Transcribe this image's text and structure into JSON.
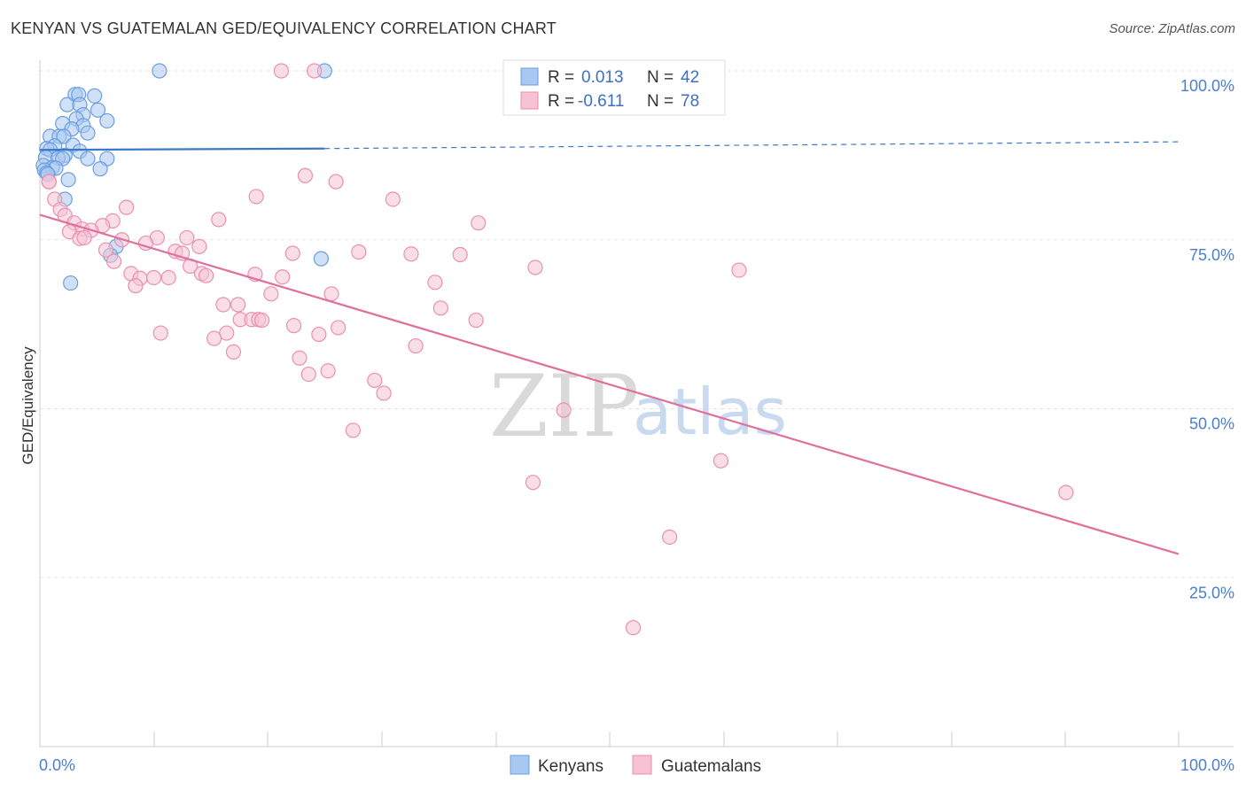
{
  "title": "KENYAN VS GUATEMALAN GED/EQUIVALENCY CORRELATION CHART",
  "source": "Source: ZipAtlas.com",
  "watermark": {
    "zip": "ZIP",
    "atlas": "atlas"
  },
  "colors": {
    "kenyan_fill": "#a9c8f0",
    "kenyan_stroke": "#6a9ee0",
    "kenyan_line": "#3a78c8",
    "guatemalan_fill": "#f6c3d4",
    "guatemalan_stroke": "#ea8fb0",
    "guatemalan_line": "#e06f99",
    "grid": "#e3e3e3",
    "tick_label": "#4a7fcf"
  },
  "legend": {
    "rows": [
      {
        "r_label": "R =",
        "r_value": "0.013",
        "n_label": "N =",
        "n_value": "42"
      },
      {
        "r_label": "R =",
        "r_value": "-0.611",
        "n_label": "N =",
        "n_value": "78"
      }
    ]
  },
  "bottom_legend": [
    "Kenyans",
    "Guatemalans"
  ],
  "chart_data": {
    "type": "scatter",
    "title": "KENYAN VS GUATEMALAN GED/EQUIVALENCY CORRELATION CHART",
    "xlabel": "",
    "ylabel": "GED/Equivalency",
    "xlim": [
      0,
      100
    ],
    "ylim": [
      0,
      100
    ],
    "x_tick_labels": [
      "0.0%",
      "100.0%"
    ],
    "y_ticks": [
      25,
      50,
      75,
      100
    ],
    "y_tick_labels": [
      "25.0%",
      "50.0%",
      "75.0%",
      "100.0%"
    ],
    "grid": true,
    "series": [
      {
        "name": "Kenyans",
        "trend": {
          "x": [
            0,
            25,
            100
          ],
          "y": [
            88.3,
            88.5,
            89.5
          ],
          "solid_until": 25
        },
        "points": [
          {
            "x": 10.5,
            "y": 100
          },
          {
            "x": 25,
            "y": 100
          },
          {
            "x": 3.1,
            "y": 96.5
          },
          {
            "x": 3.4,
            "y": 96.5
          },
          {
            "x": 4.8,
            "y": 96.3
          },
          {
            "x": 2.4,
            "y": 95
          },
          {
            "x": 3.5,
            "y": 95
          },
          {
            "x": 5.1,
            "y": 94.2
          },
          {
            "x": 3.8,
            "y": 93.5
          },
          {
            "x": 3.2,
            "y": 92.9
          },
          {
            "x": 5.9,
            "y": 92.6
          },
          {
            "x": 2,
            "y": 92.2
          },
          {
            "x": 3.8,
            "y": 91.9
          },
          {
            "x": 2.8,
            "y": 91.4
          },
          {
            "x": 4.2,
            "y": 90.8
          },
          {
            "x": 0.9,
            "y": 90.3
          },
          {
            "x": 1.7,
            "y": 90.3
          },
          {
            "x": 2.1,
            "y": 90.3
          },
          {
            "x": 2.9,
            "y": 89
          },
          {
            "x": 1.3,
            "y": 88.9
          },
          {
            "x": 0.6,
            "y": 88.5
          },
          {
            "x": 0.9,
            "y": 88.3
          },
          {
            "x": 3.5,
            "y": 88.1
          },
          {
            "x": 2.2,
            "y": 87.5
          },
          {
            "x": 0.5,
            "y": 87.2
          },
          {
            "x": 1.6,
            "y": 87.1
          },
          {
            "x": 2,
            "y": 87
          },
          {
            "x": 4.2,
            "y": 87
          },
          {
            "x": 5.9,
            "y": 87
          },
          {
            "x": 0.3,
            "y": 86
          },
          {
            "x": 1.1,
            "y": 85.7
          },
          {
            "x": 1.4,
            "y": 85.6
          },
          {
            "x": 5.3,
            "y": 85.5
          },
          {
            "x": 0.4,
            "y": 85.3
          },
          {
            "x": 0.6,
            "y": 84.9
          },
          {
            "x": 0.7,
            "y": 84.7
          },
          {
            "x": 2.5,
            "y": 83.9
          },
          {
            "x": 2.2,
            "y": 81
          },
          {
            "x": 6.7,
            "y": 74
          },
          {
            "x": 6.2,
            "y": 72.7
          },
          {
            "x": 24.7,
            "y": 72.2
          },
          {
            "x": 2.7,
            "y": 68.6
          }
        ]
      },
      {
        "name": "Guatemalans",
        "trend": {
          "x": [
            0,
            100
          ],
          "y": [
            78.7,
            28.5
          ]
        },
        "points": [
          {
            "x": 21.2,
            "y": 100
          },
          {
            "x": 24.1,
            "y": 100
          },
          {
            "x": 0.8,
            "y": 83.6
          },
          {
            "x": 23.3,
            "y": 84.5
          },
          {
            "x": 26,
            "y": 83.6
          },
          {
            "x": 1.3,
            "y": 81
          },
          {
            "x": 19,
            "y": 81.4
          },
          {
            "x": 31,
            "y": 81
          },
          {
            "x": 1.8,
            "y": 79.5
          },
          {
            "x": 7.6,
            "y": 79.8
          },
          {
            "x": 2.2,
            "y": 78.6
          },
          {
            "x": 15.7,
            "y": 78
          },
          {
            "x": 3,
            "y": 77.5
          },
          {
            "x": 6.4,
            "y": 77.8
          },
          {
            "x": 38.5,
            "y": 77.5
          },
          {
            "x": 5.5,
            "y": 77.1
          },
          {
            "x": 3.7,
            "y": 76.6
          },
          {
            "x": 2.6,
            "y": 76.2
          },
          {
            "x": 4.5,
            "y": 76.4
          },
          {
            "x": 3.5,
            "y": 75.2
          },
          {
            "x": 3.9,
            "y": 75.3
          },
          {
            "x": 10.3,
            "y": 75.3
          },
          {
            "x": 12.9,
            "y": 75.3
          },
          {
            "x": 7.2,
            "y": 75
          },
          {
            "x": 9.3,
            "y": 74.5
          },
          {
            "x": 14,
            "y": 74
          },
          {
            "x": 5.8,
            "y": 73.5
          },
          {
            "x": 11.9,
            "y": 73.3
          },
          {
            "x": 12.5,
            "y": 73
          },
          {
            "x": 22.2,
            "y": 73
          },
          {
            "x": 28,
            "y": 73.2
          },
          {
            "x": 32.6,
            "y": 72.9
          },
          {
            "x": 36.9,
            "y": 72.8
          },
          {
            "x": 6.5,
            "y": 71.8
          },
          {
            "x": 13.2,
            "y": 71.1
          },
          {
            "x": 43.5,
            "y": 70.9
          },
          {
            "x": 61.4,
            "y": 70.5
          },
          {
            "x": 8,
            "y": 70
          },
          {
            "x": 14.2,
            "y": 70
          },
          {
            "x": 14.6,
            "y": 69.7
          },
          {
            "x": 18.9,
            "y": 69.9
          },
          {
            "x": 8.8,
            "y": 69.3
          },
          {
            "x": 10,
            "y": 69.4
          },
          {
            "x": 11.3,
            "y": 69.4
          },
          {
            "x": 21.3,
            "y": 69.5
          },
          {
            "x": 34.7,
            "y": 68.7
          },
          {
            "x": 8.4,
            "y": 68.2
          },
          {
            "x": 20.3,
            "y": 67
          },
          {
            "x": 25.6,
            "y": 67
          },
          {
            "x": 16.1,
            "y": 65.4
          },
          {
            "x": 17.4,
            "y": 65.4
          },
          {
            "x": 35.2,
            "y": 64.9
          },
          {
            "x": 17.6,
            "y": 63.2
          },
          {
            "x": 18.6,
            "y": 63.2
          },
          {
            "x": 19.2,
            "y": 63.2
          },
          {
            "x": 19.5,
            "y": 63.1
          },
          {
            "x": 38.3,
            "y": 63.1
          },
          {
            "x": 22.3,
            "y": 62.3
          },
          {
            "x": 26.2,
            "y": 62
          },
          {
            "x": 10.6,
            "y": 61.2
          },
          {
            "x": 16.4,
            "y": 61.2
          },
          {
            "x": 24.5,
            "y": 61
          },
          {
            "x": 15.3,
            "y": 60.4
          },
          {
            "x": 33,
            "y": 59.3
          },
          {
            "x": 17,
            "y": 58.4
          },
          {
            "x": 22.8,
            "y": 57.5
          },
          {
            "x": 25.3,
            "y": 55.6
          },
          {
            "x": 23.6,
            "y": 55.1
          },
          {
            "x": 29.4,
            "y": 54.2
          },
          {
            "x": 30.2,
            "y": 52.3
          },
          {
            "x": 46,
            "y": 49.8
          },
          {
            "x": 27.5,
            "y": 46.8
          },
          {
            "x": 59.8,
            "y": 42.3
          },
          {
            "x": 43.3,
            "y": 39.1
          },
          {
            "x": 90.1,
            "y": 37.6
          },
          {
            "x": 55.3,
            "y": 31
          },
          {
            "x": 52.1,
            "y": 17.6
          },
          {
            "x": 0.8,
            "y": 83.6
          }
        ]
      }
    ]
  }
}
